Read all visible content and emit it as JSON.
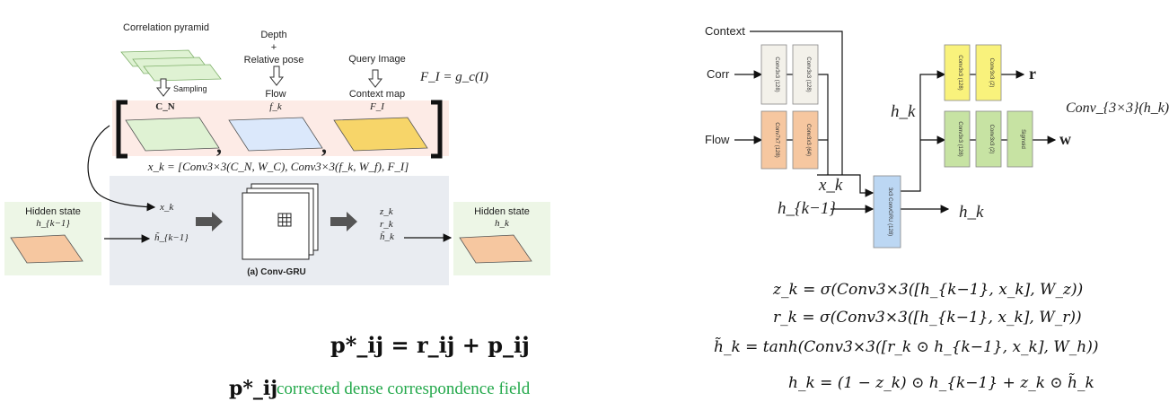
{
  "left": {
    "top_labels": {
      "correlation_pyramid": "Correlation pyramid",
      "depth_pose": [
        "Depth",
        "+",
        "Relative pose"
      ],
      "query_image": "Query Image",
      "fi_def": "F_I = g_c(I)",
      "sampling": "Sampling",
      "flow": "Flow",
      "context_map": "Context map"
    },
    "tensor_labels": {
      "cn": "C_N",
      "fk": "f_k",
      "fi": "F_I"
    },
    "xk_formula": "x_k = [Conv3×3(C_N, W_C), Conv3×3(f_k, W_f), F_I]",
    "hidden_in": {
      "title": "Hidden state",
      "var": "h_{k−1}"
    },
    "hidden_out": {
      "title": "Hidden state",
      "var": "h_k"
    },
    "gru_inputs": [
      "x_k",
      "h̃_{k−1}"
    ],
    "gru_outputs": [
      "z_k",
      "r_k",
      "h̃_k"
    ],
    "gru_caption": "(a) Conv-GRU",
    "update_eq": "p*_ij = r_ij + p_ij",
    "update_lhs": "p*_ij",
    "update_desc": "corrected dense correspondence field",
    "colors": {
      "green_sheet": "#dff2d3",
      "blue_sheet": "#dbe8fb",
      "yellow_sheet": "#f7d569",
      "orange_sheet": "#f6c7a0",
      "pink_band": "#fdebe6",
      "gray_panel": "#e9ecf1",
      "hidden_bg": "#edf6e6",
      "desc_green": "#22a84a"
    }
  },
  "right": {
    "inputs": [
      "Context",
      "Corr",
      "Flow"
    ],
    "xk": "x_k",
    "hkm1": "h_{k−1}",
    "hk_top": "h_k",
    "hk_out": "h_k",
    "conv_annot": "Conv_{3×3}(h_k)",
    "out_r": "r",
    "out_w": "w",
    "blocks": {
      "corr1": "Conv3x3 (128)",
      "corr2": "Conv3x3 (128)",
      "flow1": "Conv7x7 (128)",
      "flow2": "Conv3x3 (64)",
      "gru": "3x3 ConvGRU (128)",
      "r1": "Conv3x3 (128)",
      "r2": "Conv3x3 (2)",
      "w1": "Conv3x3 (128)",
      "w2": "Conv3x3 (2)",
      "w3": "Sigmoid"
    },
    "equations": [
      "z_k = σ(Conv3×3([h_{k−1}, x_k], W_z))",
      "r_k = σ(Conv3×3([h_{k−1}, x_k], W_r))",
      "h̃_k = tanh(Conv3×3([r_k ⊙ h_{k−1}, x_k], W_h))",
      "h_k = (1 − z_k) ⊙ h_{k−1} + z_k ⊙ h̃_k"
    ],
    "colors": {
      "corr_block": "#f3f1ea",
      "flow_block": "#f6c7a0",
      "gru_block": "#bcd7f3",
      "r_block": "#f9f27c",
      "w_block": "#c7e3a3"
    }
  }
}
